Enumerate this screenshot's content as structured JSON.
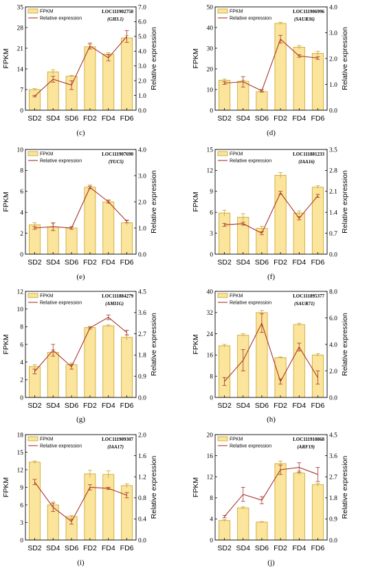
{
  "legend": {
    "bar_label": "FPKM",
    "line_label": "Relative expression"
  },
  "colors": {
    "bar_fill": "#fbe49b",
    "bar_stroke": "#c9a227",
    "line": "#a8342a",
    "axis": "#000000"
  },
  "chart_data": [
    {
      "panel_label": "(c)",
      "type": "bar+line",
      "gene_id": "LOC111902750",
      "gene_symbol": "(GH3.1)",
      "categories": [
        "SD2",
        "SD4",
        "SD6",
        "FD2",
        "FD4",
        "FD6"
      ],
      "ylabel": "FPKM",
      "y2label": "Relative expression",
      "ylim": [
        0,
        35
      ],
      "yticks": [
        "0",
        "7",
        "14",
        "21",
        "28",
        "35"
      ],
      "y2lim": [
        0,
        7
      ],
      "y2ticks": [
        "0.0",
        "1.0",
        "2.0",
        "3.0",
        "4.0",
        "5.0",
        "6.0",
        "7.0"
      ],
      "fpkm": [
        7,
        13,
        11.5,
        21.5,
        19,
        24.5
      ],
      "fpkm_err": [
        0.3,
        0.7,
        0.3,
        0.8,
        0.5,
        0.8
      ],
      "rel": [
        0.95,
        2.1,
        1.7,
        4.35,
        3.55,
        5.0
      ],
      "rel_err": [
        0.05,
        0.2,
        0.3,
        0.2,
        0.2,
        0.4
      ]
    },
    {
      "panel_label": "(d)",
      "type": "bar+line",
      "gene_id": "LOC111906996",
      "gene_symbol": "(SAUR36)",
      "categories": [
        "SD2",
        "SD4",
        "SD6",
        "FD2",
        "FD4",
        "FD6"
      ],
      "ylabel": "FPKM",
      "y2label": "Relative expression",
      "ylim": [
        0,
        50
      ],
      "yticks": [
        "0",
        "10",
        "20",
        "30",
        "40",
        "50"
      ],
      "y2lim": [
        0,
        4
      ],
      "y2ticks": [
        "0.0",
        "1.0",
        "2.0",
        "3.0",
        "4.0"
      ],
      "fpkm": [
        14.5,
        14,
        9,
        42,
        30.5,
        27.5
      ],
      "fpkm_err": [
        0.5,
        0.5,
        0.3,
        0.5,
        0.8,
        1.0
      ],
      "rel": [
        1.05,
        1.1,
        0.75,
        2.75,
        2.1,
        2.02
      ],
      "rel_err": [
        0.05,
        0.2,
        0.05,
        0.15,
        0.05,
        0.05
      ]
    },
    {
      "panel_label": "(e)",
      "type": "bar+line",
      "gene_id": "LOC111907690",
      "gene_symbol": "(YUC5)",
      "categories": [
        "SD2",
        "SD4",
        "SD6",
        "FD2",
        "FD4",
        "FD6"
      ],
      "ylabel": "FPKM",
      "y2label": "Relative expression",
      "ylim": [
        0,
        10
      ],
      "yticks": [
        "0",
        "2",
        "4",
        "6",
        "8",
        "10"
      ],
      "y2lim": [
        0,
        4
      ],
      "y2ticks": [
        "0.0",
        "1.0",
        "2.0",
        "3.0",
        "4.0"
      ],
      "fpkm": [
        2.8,
        2.6,
        2.5,
        6.4,
        5.0,
        3.0
      ],
      "fpkm_err": [
        0.2,
        0.3,
        0.1,
        0.2,
        0.2,
        0.2
      ],
      "rel": [
        1.0,
        1.05,
        1.0,
        2.55,
        2.0,
        1.25
      ],
      "rel_err": [
        0.05,
        0.15,
        0.05,
        0.05,
        0.05,
        0.05
      ]
    },
    {
      "panel_label": "(f)",
      "type": "bar+line",
      "gene_id": "LOC111881233",
      "gene_symbol": "(IAA16)",
      "categories": [
        "SD2",
        "SD4",
        "SD6",
        "FD2",
        "FD4",
        "FD6"
      ],
      "ylabel": "FPKM",
      "y2label": "Relative expression",
      "ylim": [
        0,
        15
      ],
      "yticks": [
        "0",
        "3",
        "6",
        "9",
        "12",
        "15"
      ],
      "y2lim": [
        0,
        3.5
      ],
      "y2ticks": [
        "0.0",
        "0.7",
        "1.4",
        "2.1",
        "2.8",
        "3.5"
      ],
      "fpkm": [
        5.9,
        5.3,
        3.7,
        11.3,
        5.9,
        9.6
      ],
      "fpkm_err": [
        0.4,
        0.5,
        0.3,
        0.4,
        0.3,
        0.2
      ],
      "rel": [
        0.98,
        1.02,
        0.7,
        2.05,
        1.2,
        1.95
      ],
      "rel_err": [
        0.05,
        0.05,
        0.05,
        0.05,
        0.05,
        0.05
      ]
    },
    {
      "panel_label": "(g)",
      "type": "bar+line",
      "gene_id": "LOC111884279",
      "gene_symbol": "(AMI1G)",
      "categories": [
        "SD2",
        "SD4",
        "SD6",
        "FD2",
        "FD4",
        "FD6"
      ],
      "ylabel": "FPKM",
      "y2label": "Relative expression",
      "ylim": [
        0,
        12
      ],
      "yticks": [
        "0",
        "2",
        "4",
        "6",
        "8",
        "10",
        "12"
      ],
      "y2lim": [
        0,
        4.5
      ],
      "y2ticks": [
        "0.0",
        "0.9",
        "1.8",
        "2.7",
        "3.6",
        "4.5"
      ],
      "fpkm": [
        3.5,
        5.1,
        3.7,
        7.9,
        8.1,
        6.8
      ],
      "fpkm_err": [
        0.2,
        0.3,
        0.2,
        0.1,
        0.1,
        0.3
      ],
      "rel": [
        1.1,
        2.0,
        1.3,
        2.95,
        3.4,
        2.75
      ],
      "rel_err": [
        0.1,
        0.25,
        0.1,
        0.05,
        0.1,
        0.1
      ]
    },
    {
      "panel_label": "(h)",
      "type": "bar+line",
      "gene_id": "LOC111895377",
      "gene_symbol": "(SAUR71)",
      "categories": [
        "SD2",
        "SD4",
        "SD6",
        "FD2",
        "FD4",
        "FD6"
      ],
      "ylabel": "FPKM",
      "y2label": "Relative expression",
      "ylim": [
        0,
        40
      ],
      "yticks": [
        "0",
        "8",
        "16",
        "24",
        "32",
        "40"
      ],
      "y2lim": [
        0,
        8
      ],
      "y2ticks": [
        "0.0",
        "2.0",
        "4.0",
        "6.0",
        "8.0"
      ],
      "fpkm": [
        19.5,
        23.5,
        32,
        15,
        27.5,
        16
      ],
      "fpkm_err": [
        0.5,
        0.5,
        0.8,
        0.3,
        0.5,
        0.5
      ],
      "rel": [
        1.2,
        2.8,
        5.6,
        1.2,
        3.8,
        1.5
      ],
      "rel_err": [
        0.3,
        0.8,
        0.7,
        0.2,
        0.3,
        0.5
      ]
    },
    {
      "panel_label": "(i)",
      "type": "bar+line",
      "gene_id": "LOC111909307",
      "gene_symbol": "(IAA17)",
      "categories": [
        "SD2",
        "SD4",
        "SD6",
        "FD2",
        "FD4",
        "FD6"
      ],
      "ylabel": "FPKM",
      "y2label": "Relative expression",
      "ylim": [
        0,
        18
      ],
      "yticks": [
        "0",
        "3",
        "6",
        "9",
        "12",
        "15",
        "18"
      ],
      "y2lim": [
        0,
        2
      ],
      "y2ticks": [
        "0.0",
        "0.4",
        "0.8",
        "1.2",
        "1.6",
        "2.0"
      ],
      "fpkm": [
        13.3,
        6,
        4,
        11.3,
        11.2,
        9.3
      ],
      "fpkm_err": [
        0.2,
        0.5,
        0.2,
        0.6,
        0.6,
        0.3
      ],
      "rel": [
        1.1,
        0.62,
        0.35,
        1.0,
        0.98,
        0.85
      ],
      "rel_err": [
        0.05,
        0.08,
        0.05,
        0.05,
        0.02,
        0.05
      ]
    },
    {
      "panel_label": "(j)",
      "type": "bar+line",
      "gene_id": "LOC111910868",
      "gene_symbol": "(ARF19)",
      "categories": [
        "SD2",
        "SD4",
        "SD6",
        "FD2",
        "FD4",
        "FD6"
      ],
      "ylabel": "FPKM",
      "y2label": "Relative expression",
      "ylim": [
        0,
        20
      ],
      "yticks": [
        "0",
        "4",
        "8",
        "12",
        "16",
        "20"
      ],
      "y2lim": [
        0,
        4.5
      ],
      "y2ticks": [
        "0.0",
        "0.9",
        "1.8",
        "2.7",
        "3.6",
        "4.5"
      ],
      "fpkm": [
        3.7,
        6.1,
        3.4,
        14.5,
        12.7,
        10.5
      ],
      "fpkm_err": [
        0.2,
        0.2,
        0.1,
        0.5,
        0.4,
        0.3
      ],
      "rel": [
        1.0,
        1.95,
        1.7,
        3.0,
        3.1,
        2.8
      ],
      "rel_err": [
        0.05,
        0.3,
        0.15,
        0.2,
        0.2,
        0.3
      ]
    }
  ]
}
